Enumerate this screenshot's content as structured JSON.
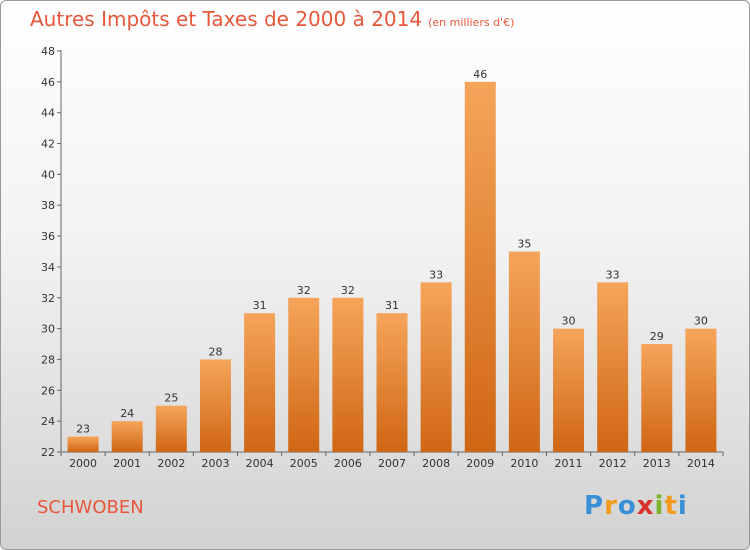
{
  "title": "Autres Impôts et Taxes de 2000 à 2014",
  "subtitle": "(en milliers d'€)",
  "commune": "SCHWOBEN",
  "logo": {
    "text": "Proxiti",
    "letters": [
      "P",
      "r",
      "o",
      "x",
      "i",
      "t",
      "i"
    ],
    "colors": [
      "#3a8fd6",
      "#f39a1e",
      "#3a8fd6",
      "#d9312b",
      "#7cb32a",
      "#f39a1e",
      "#3a8fd6"
    ]
  },
  "colors": {
    "bar_top": "#f5a55a",
    "bar_bottom": "#cf6614",
    "title": "#e8573a"
  },
  "chart_data": {
    "type": "bar",
    "title": "Autres Impôts et Taxes de 2000 à 2014",
    "categories": [
      "2000",
      "2001",
      "2002",
      "2003",
      "2004",
      "2005",
      "2006",
      "2007",
      "2008",
      "2009",
      "2010",
      "2011",
      "2012",
      "2013",
      "2014"
    ],
    "values": [
      23,
      24,
      25,
      28,
      31,
      32,
      32,
      31,
      33,
      46,
      35,
      30,
      33,
      29,
      30
    ],
    "ylim": [
      22,
      48
    ],
    "yticks": [
      22,
      24,
      26,
      28,
      30,
      32,
      34,
      36,
      38,
      40,
      42,
      44,
      46,
      48
    ],
    "grid": false
  }
}
